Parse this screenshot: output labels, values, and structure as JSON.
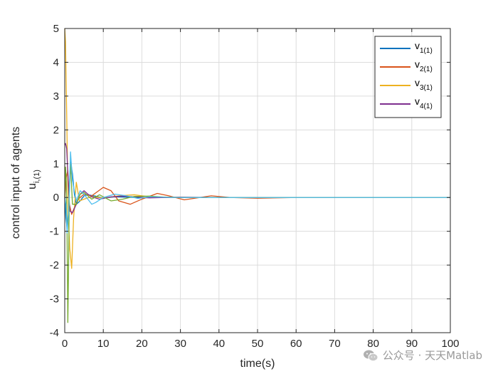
{
  "chart_data": {
    "type": "line",
    "xlabel": "time(s)",
    "ylabel": "control input of agents",
    "ylabel_symbol": "u",
    "ylabel_sub": "i,(1)",
    "xlim": [
      0,
      100
    ],
    "ylim": [
      -4,
      5
    ],
    "xticks": [
      0,
      10,
      20,
      30,
      40,
      50,
      60,
      70,
      80,
      90,
      100
    ],
    "yticks": [
      -4,
      -3,
      -2,
      -1,
      0,
      1,
      2,
      3,
      4,
      5
    ],
    "grid": true,
    "legend_position": "top-right",
    "series": [
      {
        "name": "v",
        "sub": "1(1)",
        "color": "#0072BD",
        "x": [
          0,
          0.3,
          0.6,
          1,
          1.5,
          2,
          2.5,
          3,
          4,
          5,
          6,
          8,
          10,
          13,
          16,
          20,
          25,
          30,
          40,
          100
        ],
        "y": [
          0,
          -0.6,
          -0.9,
          -0.4,
          1.1,
          0.7,
          0.1,
          -0.2,
          -0.1,
          0.05,
          0.08,
          0.04,
          -0.02,
          0.02,
          0.01,
          -0.01,
          0.005,
          0,
          0,
          0
        ]
      },
      {
        "name": "v",
        "sub": "2(1)",
        "color": "#D95319",
        "x": [
          0,
          0.4,
          0.8,
          1.2,
          1.8,
          2.5,
          3.5,
          5,
          7,
          10,
          12,
          14,
          17,
          20,
          24,
          27,
          31,
          35,
          38,
          43,
          50,
          60,
          100
        ],
        "y": [
          0,
          0.6,
          0.8,
          -0.2,
          -0.5,
          -0.3,
          -0.05,
          0.1,
          0.05,
          0.3,
          0.2,
          -0.1,
          -0.2,
          -0.05,
          0.12,
          0.05,
          -0.07,
          0,
          0.05,
          0,
          -0.02,
          0,
          0
        ]
      },
      {
        "name": "v",
        "sub": "3(1)",
        "color": "#EDB120",
        "x": [
          0,
          0.2,
          0.5,
          0.9,
          1.3,
          1.8,
          2.3,
          3,
          3.8,
          5,
          7,
          10,
          14,
          18,
          22,
          28,
          35,
          50,
          100
        ],
        "y": [
          5,
          4.6,
          2.5,
          -0.5,
          -1.5,
          -2.1,
          -0.6,
          0.45,
          -0.1,
          -0.05,
          0.03,
          -0.02,
          0.05,
          0.08,
          0.02,
          0.01,
          0,
          0,
          0
        ]
      },
      {
        "name": "v",
        "sub": "4(1)",
        "color": "#7E2F8E",
        "x": [
          0,
          0.2,
          0.5,
          0.9,
          1.3,
          2,
          3,
          4,
          5,
          6,
          7,
          9,
          12,
          15,
          18,
          22,
          26,
          30,
          40,
          100
        ],
        "y": [
          1.55,
          1.6,
          1.45,
          0.5,
          -0.4,
          -0.45,
          -0.2,
          0.1,
          0.2,
          0.1,
          0.02,
          -0.05,
          0.02,
          0.04,
          0.02,
          -0.01,
          0,
          0.01,
          0,
          0
        ]
      },
      {
        "name": "",
        "sub": "",
        "color": "#77AC30",
        "x": [
          0,
          0.2,
          0.4,
          0.6,
          0.8,
          1,
          1.2,
          1.5,
          2,
          3,
          4,
          5,
          6,
          7,
          9,
          12,
          15,
          18,
          22,
          26,
          30,
          40,
          100
        ],
        "y": [
          0,
          0.9,
          0.5,
          -1,
          -3.7,
          -2,
          0.3,
          1,
          -0.2,
          -0.2,
          0.1,
          0.15,
          0.05,
          -0.05,
          0.08,
          -0.1,
          -0.05,
          0.03,
          0.04,
          0.01,
          0,
          0,
          0
        ]
      },
      {
        "name": "",
        "sub": "",
        "color": "#4DBEEE",
        "x": [
          0,
          0.3,
          0.6,
          1,
          1.5,
          2,
          3,
          4,
          5,
          6,
          7,
          8,
          10,
          13,
          16,
          19,
          22,
          26,
          30,
          40,
          100
        ],
        "y": [
          0,
          -0.2,
          -1.05,
          -0.5,
          1.35,
          0.5,
          -0.1,
          0.2,
          0.1,
          -0.05,
          -0.2,
          -0.15,
          0,
          0.1,
          0.05,
          -0.03,
          0.02,
          0.01,
          0,
          0,
          0
        ]
      }
    ]
  },
  "watermark": {
    "text": "公众号 · 天天Matlab",
    "icon": "wechat-icon"
  }
}
